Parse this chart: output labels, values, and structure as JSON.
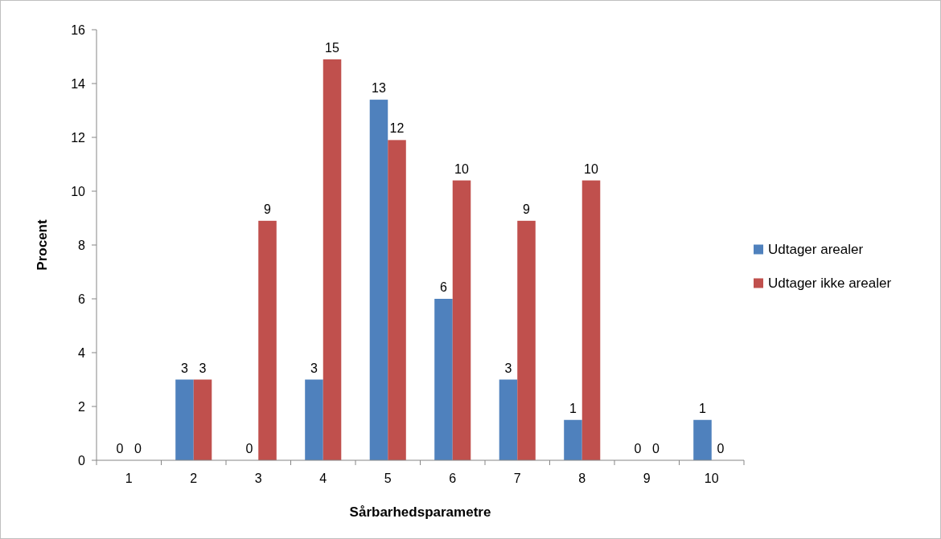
{
  "chart_data": {
    "type": "bar",
    "xlabel": "Sårbarhedsparametre",
    "ylabel": "Procent",
    "categories": [
      "1",
      "2",
      "3",
      "4",
      "5",
      "6",
      "7",
      "8",
      "9",
      "10"
    ],
    "series": [
      {
        "name": "Udtager arealer",
        "color": "#4f81bd",
        "values": [
          0,
          3,
          0,
          3,
          13.4,
          6,
          3,
          1.5,
          0,
          1.5
        ],
        "value_labels": [
          "0",
          "3",
          "0",
          "3",
          "13",
          "6",
          "3",
          "1",
          "0",
          "1"
        ]
      },
      {
        "name": "Udtager ikke arealer",
        "color": "#c0504d",
        "values": [
          0,
          3,
          8.9,
          14.9,
          11.9,
          10.4,
          8.9,
          10.4,
          0,
          0
        ],
        "value_labels": [
          "0",
          "3",
          "9",
          "15",
          "12",
          "10",
          "9",
          "10",
          "0",
          "0"
        ]
      }
    ],
    "ylim": [
      0,
      16
    ],
    "yticks": [
      0,
      2,
      4,
      6,
      8,
      10,
      12,
      14,
      16
    ],
    "grid": false,
    "legend": "right"
  }
}
